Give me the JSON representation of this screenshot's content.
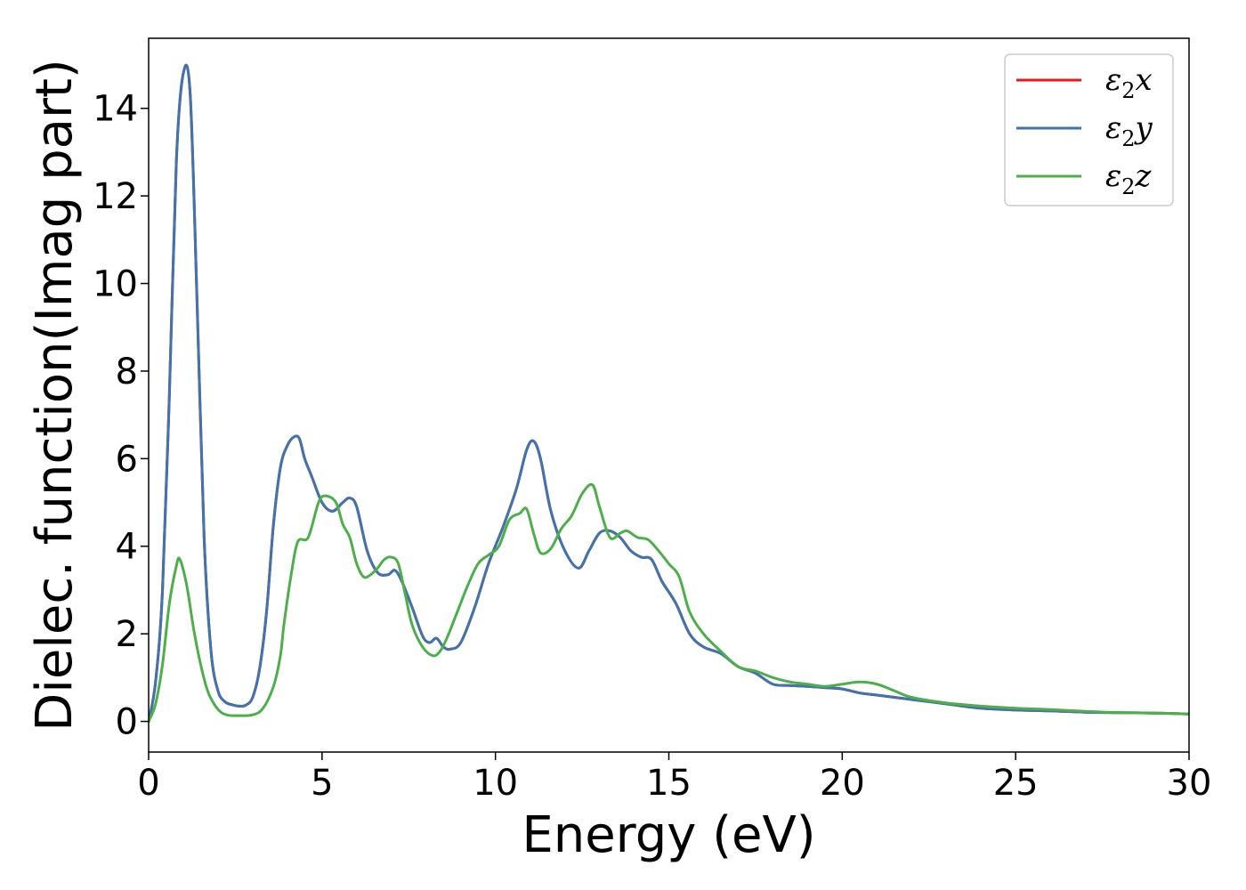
{
  "chart_data": {
    "type": "line",
    "title": "",
    "xlabel": "Energy (eV)",
    "ylabel": "Dielec. function(Imag part)",
    "xlim": [
      0,
      30
    ],
    "ylim": [
      -0.7,
      15.6
    ],
    "xticks": [
      0,
      5,
      10,
      15,
      20,
      25,
      30
    ],
    "yticks": [
      0,
      2,
      4,
      6,
      8,
      10,
      12,
      14
    ],
    "grid": false,
    "legend_position": "top-right",
    "series": [
      {
        "name": "ε2x",
        "legend": {
          "base": "ε",
          "sub": "2",
          "tail": "x"
        },
        "color": "#e41a1c",
        "x": [
          0,
          0.2,
          0.4,
          0.6,
          0.8,
          1.0,
          1.2,
          1.4,
          1.6,
          1.8,
          2.0,
          2.2,
          2.4,
          2.6,
          2.8,
          3.0,
          3.2,
          3.4,
          3.6,
          3.8,
          4.0,
          4.2,
          4.35,
          4.5,
          4.7,
          5.0,
          5.3,
          5.6,
          5.8,
          6.0,
          6.3,
          6.6,
          6.9,
          7.1,
          7.3,
          7.6,
          7.9,
          8.1,
          8.3,
          8.5,
          8.7,
          9.0,
          9.4,
          9.8,
          10.2,
          10.6,
          10.9,
          11.1,
          11.3,
          11.6,
          12.0,
          12.4,
          12.7,
          13.0,
          13.3,
          13.6,
          13.9,
          14.2,
          14.5,
          14.8,
          15.2,
          15.6,
          16.0,
          16.5,
          17.0,
          17.5,
          18.0,
          18.5,
          19.0,
          19.5,
          20.0,
          20.5,
          21.0,
          22.0,
          23.0,
          24.0,
          25.0,
          26.0,
          27.0,
          28.0,
          29.0,
          30.0
        ],
        "values": [
          0.0,
          0.9,
          3.0,
          7.5,
          12.8,
          14.8,
          14.3,
          9.5,
          4.2,
          1.6,
          0.7,
          0.45,
          0.38,
          0.35,
          0.37,
          0.55,
          1.2,
          2.5,
          4.5,
          5.8,
          6.3,
          6.5,
          6.45,
          6.0,
          5.6,
          5.0,
          4.8,
          5.0,
          5.1,
          4.9,
          3.9,
          3.4,
          3.35,
          3.45,
          3.2,
          2.6,
          1.95,
          1.8,
          1.9,
          1.7,
          1.65,
          1.8,
          2.6,
          3.6,
          4.4,
          5.3,
          6.2,
          6.4,
          6.0,
          4.8,
          3.9,
          3.5,
          3.9,
          4.3,
          4.35,
          4.2,
          3.9,
          3.75,
          3.7,
          3.2,
          2.7,
          2.0,
          1.7,
          1.55,
          1.25,
          1.1,
          0.85,
          0.82,
          0.8,
          0.77,
          0.74,
          0.65,
          0.6,
          0.5,
          0.4,
          0.3,
          0.26,
          0.24,
          0.21,
          0.2,
          0.19,
          0.17
        ]
      },
      {
        "name": "ε2y",
        "legend": {
          "base": "ε",
          "sub": "2",
          "tail": "y"
        },
        "color": "#3f74ae",
        "x": [
          0,
          0.2,
          0.4,
          0.6,
          0.8,
          1.0,
          1.2,
          1.4,
          1.6,
          1.8,
          2.0,
          2.2,
          2.4,
          2.6,
          2.8,
          3.0,
          3.2,
          3.4,
          3.6,
          3.8,
          4.0,
          4.2,
          4.35,
          4.5,
          4.7,
          5.0,
          5.3,
          5.6,
          5.8,
          6.0,
          6.3,
          6.6,
          6.9,
          7.1,
          7.3,
          7.6,
          7.9,
          8.1,
          8.3,
          8.5,
          8.7,
          9.0,
          9.4,
          9.8,
          10.2,
          10.6,
          10.9,
          11.1,
          11.3,
          11.6,
          12.0,
          12.4,
          12.7,
          13.0,
          13.3,
          13.6,
          13.9,
          14.2,
          14.5,
          14.8,
          15.2,
          15.6,
          16.0,
          16.5,
          17.0,
          17.5,
          18.0,
          18.5,
          19.0,
          19.5,
          20.0,
          20.5,
          21.0,
          22.0,
          23.0,
          24.0,
          25.0,
          26.0,
          27.0,
          28.0,
          29.0,
          30.0
        ],
        "values": [
          0.0,
          0.9,
          3.0,
          7.5,
          12.8,
          14.8,
          14.3,
          9.5,
          4.2,
          1.6,
          0.7,
          0.45,
          0.38,
          0.35,
          0.37,
          0.55,
          1.2,
          2.5,
          4.5,
          5.8,
          6.3,
          6.5,
          6.45,
          6.0,
          5.6,
          5.0,
          4.8,
          5.0,
          5.1,
          4.9,
          3.9,
          3.4,
          3.35,
          3.45,
          3.2,
          2.6,
          1.95,
          1.8,
          1.9,
          1.7,
          1.65,
          1.8,
          2.6,
          3.6,
          4.4,
          5.3,
          6.2,
          6.4,
          6.0,
          4.8,
          3.9,
          3.5,
          3.9,
          4.3,
          4.35,
          4.2,
          3.9,
          3.75,
          3.7,
          3.2,
          2.7,
          2.0,
          1.7,
          1.55,
          1.25,
          1.1,
          0.85,
          0.82,
          0.8,
          0.77,
          0.74,
          0.65,
          0.6,
          0.5,
          0.4,
          0.3,
          0.26,
          0.24,
          0.21,
          0.2,
          0.19,
          0.17
        ]
      },
      {
        "name": "ε2z",
        "legend": {
          "base": "ε",
          "sub": "2",
          "tail": "z"
        },
        "color": "#4daf4a",
        "x": [
          0,
          0.2,
          0.4,
          0.6,
          0.8,
          0.9,
          1.1,
          1.3,
          1.5,
          1.7,
          1.9,
          2.1,
          2.3,
          2.6,
          3.0,
          3.3,
          3.6,
          3.8,
          3.9,
          4.1,
          4.3,
          4.6,
          4.9,
          5.1,
          5.4,
          5.6,
          5.8,
          6.0,
          6.2,
          6.4,
          6.6,
          6.8,
          7.0,
          7.2,
          7.4,
          7.6,
          7.9,
          8.2,
          8.4,
          8.6,
          8.9,
          9.2,
          9.5,
          9.8,
          10.1,
          10.4,
          10.7,
          10.9,
          11.1,
          11.3,
          11.6,
          11.9,
          12.2,
          12.5,
          12.8,
          13.0,
          13.3,
          13.6,
          13.8,
          14.1,
          14.4,
          14.7,
          15.0,
          15.3,
          15.6,
          16.0,
          16.5,
          17.0,
          17.5,
          18.0,
          18.5,
          19.0,
          19.5,
          20.0,
          20.5,
          21.0,
          21.5,
          22.0,
          23.0,
          24.0,
          25.0,
          26.0,
          27.0,
          28.0,
          29.0,
          30.0
        ],
        "values": [
          0.0,
          0.4,
          1.3,
          2.7,
          3.55,
          3.7,
          3.1,
          2.1,
          1.3,
          0.7,
          0.38,
          0.2,
          0.14,
          0.13,
          0.15,
          0.3,
          0.8,
          1.5,
          2.2,
          3.3,
          4.1,
          4.2,
          5.0,
          5.15,
          5.0,
          4.5,
          4.2,
          3.6,
          3.3,
          3.35,
          3.5,
          3.7,
          3.75,
          3.6,
          2.9,
          2.2,
          1.7,
          1.5,
          1.6,
          1.9,
          2.5,
          3.1,
          3.6,
          3.8,
          4.0,
          4.6,
          4.75,
          4.85,
          4.3,
          3.85,
          3.95,
          4.4,
          4.7,
          5.2,
          5.4,
          4.9,
          4.2,
          4.3,
          4.35,
          4.2,
          4.15,
          3.9,
          3.6,
          3.3,
          2.5,
          2.0,
          1.6,
          1.25,
          1.15,
          1.0,
          0.9,
          0.85,
          0.8,
          0.85,
          0.9,
          0.85,
          0.7,
          0.55,
          0.42,
          0.35,
          0.3,
          0.27,
          0.23,
          0.2,
          0.19,
          0.17
        ]
      }
    ]
  }
}
